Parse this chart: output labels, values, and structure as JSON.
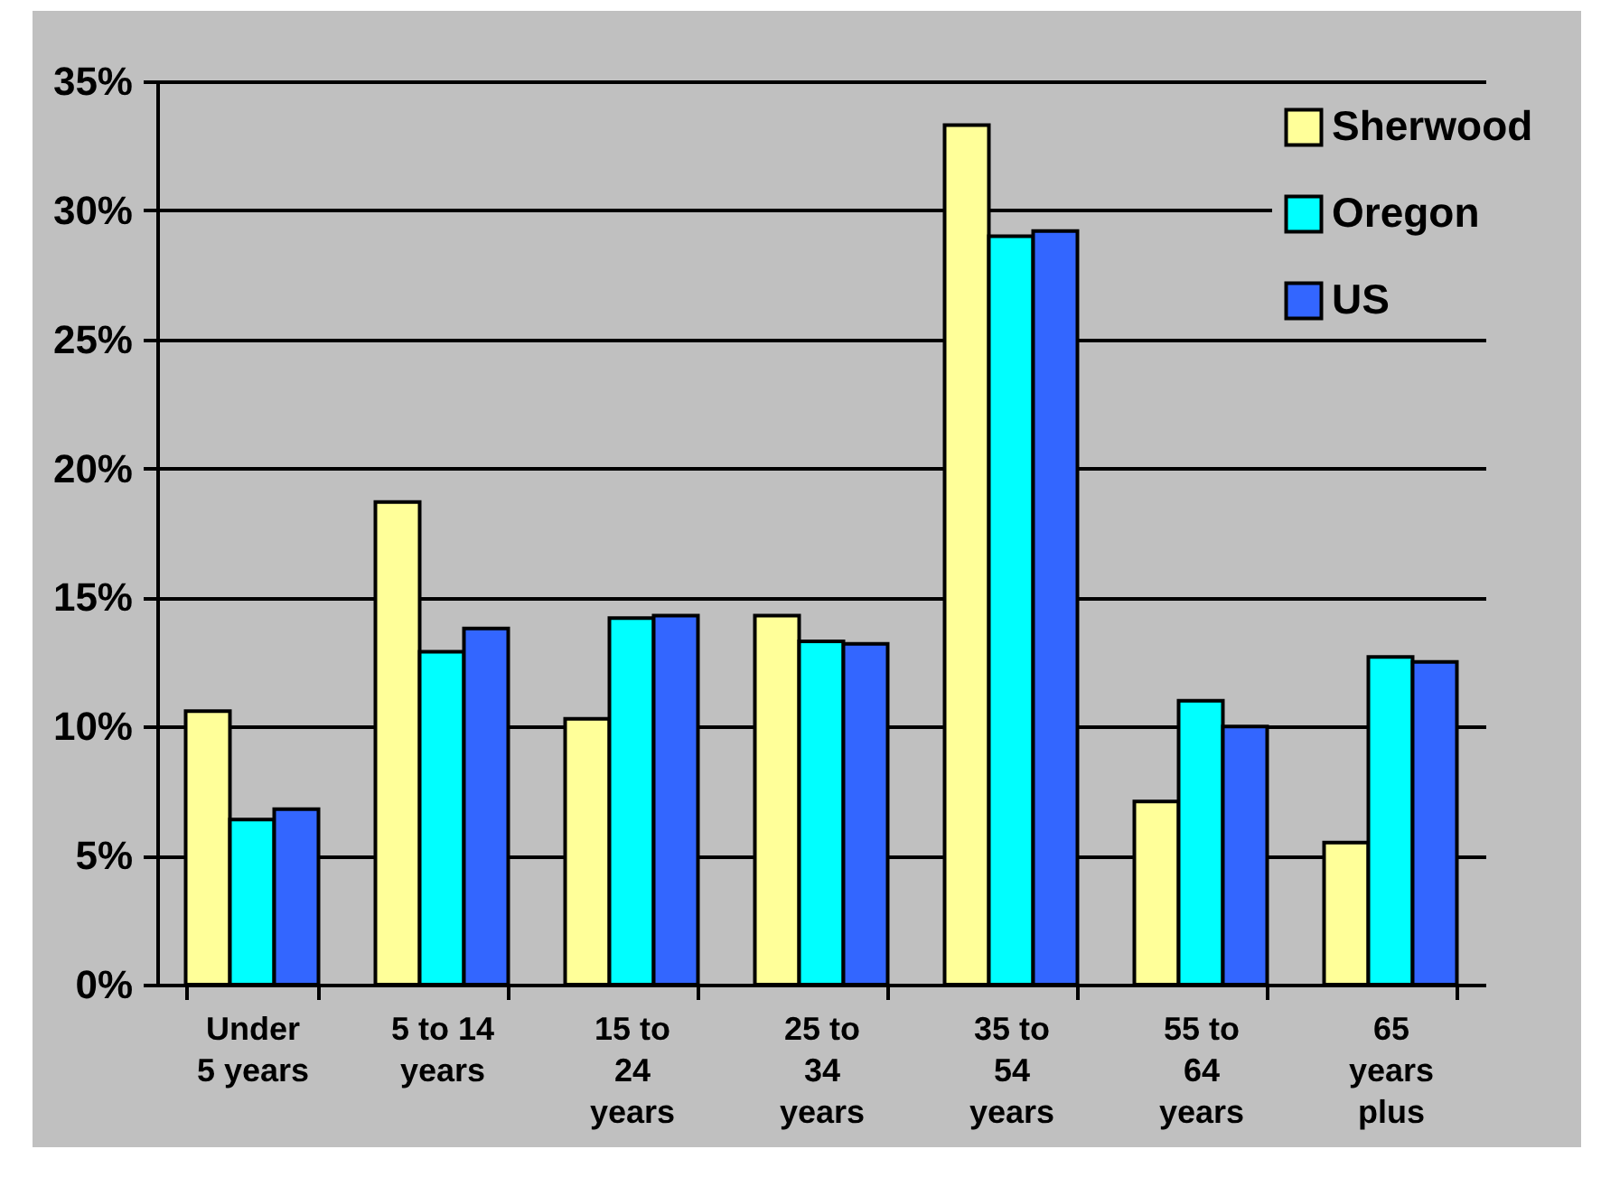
{
  "chart_data": {
    "type": "bar",
    "categories": [
      "Under 5 years",
      "5 to 14 years",
      "15 to 24 years",
      "25 to 34 years",
      "35 to 54 years",
      "55 to 64 years",
      "65 years plus"
    ],
    "series": [
      {
        "name": "Sherwood",
        "color": "#ffff99",
        "values": [
          10.6,
          18.7,
          10.3,
          14.3,
          33.3,
          7.1,
          5.5
        ]
      },
      {
        "name": "Oregon",
        "color": "#00ffff",
        "values": [
          6.4,
          12.9,
          14.2,
          13.3,
          29.0,
          11.0,
          12.7
        ]
      },
      {
        "name": "US",
        "color": "#3366ff",
        "values": [
          6.8,
          13.8,
          14.3,
          13.2,
          29.2,
          10.0,
          12.5
        ]
      }
    ],
    "ylim": [
      0,
      35
    ],
    "yticks": [
      {
        "value": 0,
        "label": "0%"
      },
      {
        "value": 5,
        "label": "5%"
      },
      {
        "value": 10,
        "label": "10%"
      },
      {
        "value": 15,
        "label": "15%"
      },
      {
        "value": 20,
        "label": "20%"
      },
      {
        "value": 25,
        "label": "25%"
      },
      {
        "value": 30,
        "label": "30%"
      },
      {
        "value": 35,
        "label": "35%"
      }
    ],
    "grid": "y",
    "legend": "top right"
  }
}
